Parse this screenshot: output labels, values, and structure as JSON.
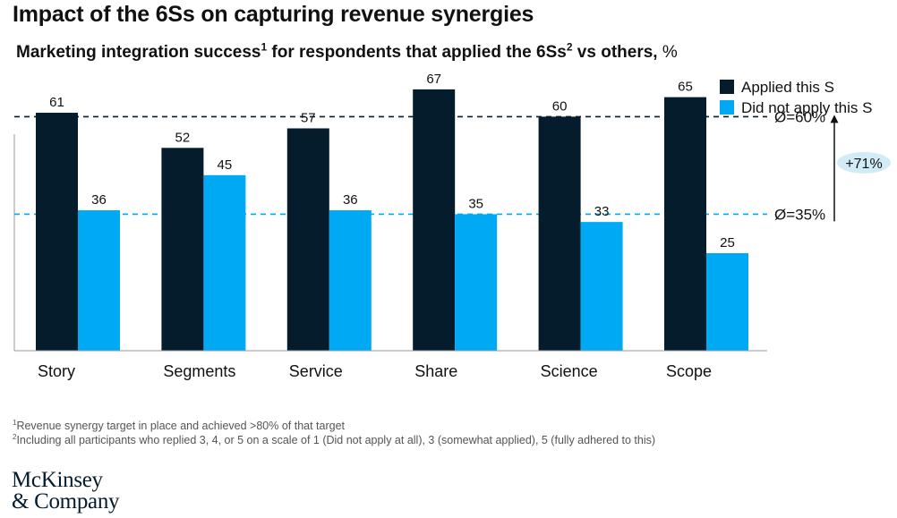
{
  "title": "Impact of the 6Ss on capturing revenue synergies",
  "subtitle": {
    "text": "Marketing integration success",
    "sup1": "1",
    "middle": " for respondents that applied the 6Ss",
    "sup2": "2",
    "end": " vs others,",
    "unit": " %"
  },
  "chart_data": {
    "type": "bar",
    "categories": [
      "Story",
      "Segments",
      "Service",
      "Share",
      "Science",
      "Scope"
    ],
    "series": [
      {
        "name": "Applied this S",
        "color": "#051c2c",
        "values": [
          61,
          52,
          57,
          67,
          60,
          65
        ]
      },
      {
        "name": "Did not apply this S",
        "color": "#00a9f4",
        "values": [
          36,
          45,
          36,
          35,
          33,
          25
        ]
      }
    ],
    "ylim": [
      0,
      70
    ],
    "grid": false,
    "legend_position": "top-right",
    "reference_lines": [
      {
        "value": 60,
        "label": "Ø=60%",
        "color": "#051c2c"
      },
      {
        "value": 35,
        "label": "Ø=35%",
        "color": "#00a9f4"
      }
    ],
    "annotation": {
      "text": "+71%",
      "from": 35,
      "to": 60,
      "bubble_color": "#d2ecf7"
    }
  },
  "footnotes": [
    {
      "mark": "1",
      "text": "Revenue synergy target in place and achieved >80% of that target"
    },
    {
      "mark": "2",
      "text": "Including all participants who replied 3, 4, or 5 on a scale of 1 (Did not apply at all), 3 (somewhat applied), 5 (fully adhered to this)"
    }
  ],
  "logo": {
    "line1": "McKinsey",
    "line2": "& Company"
  }
}
